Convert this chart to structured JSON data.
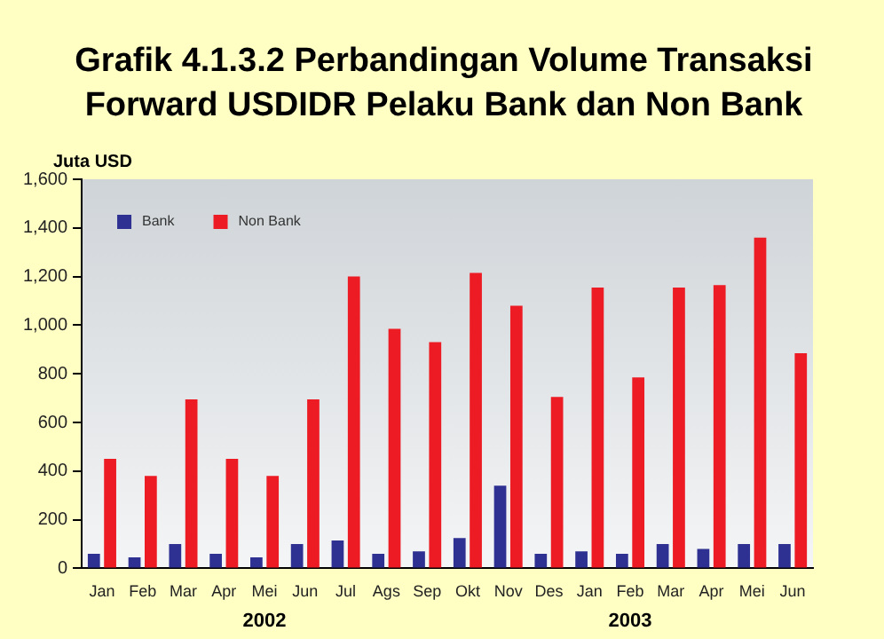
{
  "chart_data": {
    "type": "bar",
    "title": "Grafik 4.1.3.2 Perbandingan Volume Transaksi Forward USDIDR Pelaku Bank dan Non Bank",
    "ylabel": "Juta USD",
    "categories": [
      "Jan",
      "Feb",
      "Mar",
      "Apr",
      "Mei",
      "Jun",
      "Jul",
      "Ags",
      "Sep",
      "Okt",
      "Nov",
      "Des",
      "Jan",
      "Feb",
      "Mar",
      "Apr",
      "Mei",
      "Jun"
    ],
    "series": [
      {
        "name": "Bank",
        "color": "#2e3192",
        "values": [
          60,
          45,
          100,
          60,
          45,
          100,
          115,
          60,
          70,
          125,
          340,
          60,
          70,
          60,
          100,
          80,
          100,
          100
        ]
      },
      {
        "name": "Non Bank",
        "color": "#ed1c24",
        "values": [
          450,
          380,
          695,
          450,
          380,
          695,
          1200,
          985,
          930,
          1215,
          1080,
          705,
          1155,
          785,
          1155,
          1165,
          1360,
          885
        ]
      }
    ],
    "annotations": [
      "2002",
      "2003"
    ],
    "ylim": [
      0,
      1600
    ],
    "yticks": [
      0,
      200,
      400,
      600,
      800,
      {
        "value": 1000,
        "label": "1,000"
      },
      {
        "value": 1200,
        "label": "1,200"
      },
      {
        "value": 1400,
        "label": "1,400"
      },
      {
        "value": 1600,
        "label": "1,600"
      }
    ],
    "legend": "top left"
  }
}
